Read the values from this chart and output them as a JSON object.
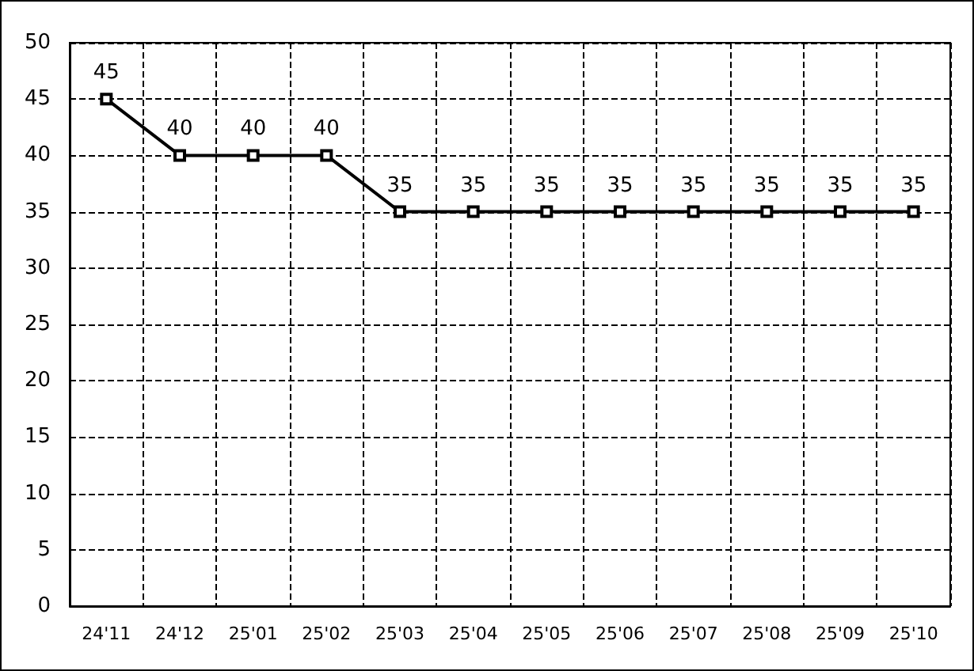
{
  "chart_data": {
    "type": "line",
    "categories": [
      "24'11",
      "24'12",
      "25'01",
      "25'02",
      "25'03",
      "25'04",
      "25'05",
      "25'06",
      "25'07",
      "25'08",
      "25'09",
      "25'10"
    ],
    "series": [
      {
        "color": "#000000",
        "values": [
          45,
          40,
          40,
          40,
          35,
          35,
          35,
          35,
          35,
          35,
          35,
          35
        ]
      }
    ],
    "ylim": [
      0,
      50
    ],
    "yticks": [
      0,
      5,
      10,
      15,
      20,
      25,
      30,
      35,
      40,
      45,
      50
    ],
    "grid": true,
    "marker": "square",
    "line_style": "solid",
    "data_labels": true
  }
}
